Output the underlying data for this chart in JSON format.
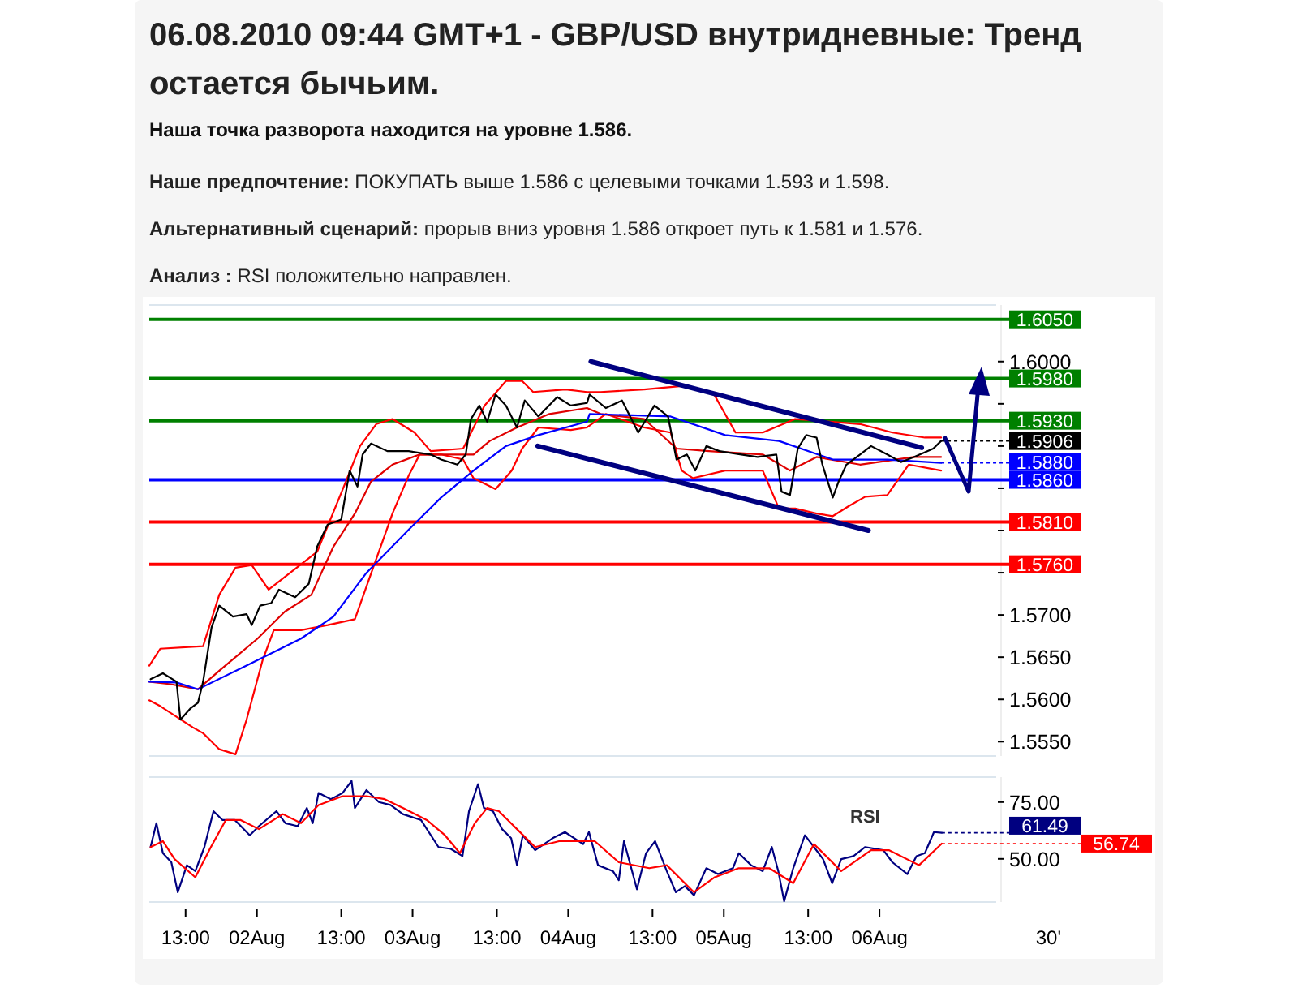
{
  "chart_data": [
    {
      "type": "line",
      "title": "06.08.2010 09:44 GMT+1 - GBP/USD внутридневные: Тренд остается бычьим.",
      "subtitle": "Наша точка разворота находится на уровне 1.586.",
      "annotations": [
        "Наше предпочтение: ПОКУПАТЬ выше 1.586 с целевыми точками 1.593 и 1.598.",
        "Альтернативный сценарий: прорыв вниз уровня 1.586 откроет путь к 1.581 и 1.576.",
        "Анализ : RSI положительно направлен."
      ],
      "xlim": [
        "2010-08-01T07:24",
        "2010-08-06T18:00"
      ],
      "ylim": [
        1.5533,
        1.6067
      ],
      "tick_labels": "y",
      "yticks": [
        {
          "value": 1.555,
          "label": "1.5550"
        },
        {
          "value": 1.56,
          "label": "1.5600"
        },
        {
          "value": 1.565,
          "label": "1.5650"
        },
        {
          "value": 1.57,
          "label": "1.5700"
        },
        {
          "value": 1.575,
          "label": null
        },
        {
          "value": 1.58,
          "label": null
        },
        {
          "value": 1.585,
          "label": null
        },
        {
          "value": 1.59,
          "label": null
        },
        {
          "value": 1.595,
          "label": null
        },
        {
          "value": 1.6,
          "label": "1.6000"
        }
      ],
      "ref_lines": [
        {
          "axis": "y",
          "value": 1.605,
          "label": "1.6050",
          "color": "#008000"
        },
        {
          "axis": "y",
          "value": 1.598,
          "label": "1.5980",
          "color": "#008000"
        },
        {
          "axis": "y",
          "value": 1.593,
          "label": "1.5930",
          "color": "#008000"
        },
        {
          "axis": "y",
          "value": 1.586,
          "label": "1.5860",
          "color": "#0000ff"
        },
        {
          "axis": "y",
          "value": 1.581,
          "label": "1.5810",
          "color": "#ff0000"
        },
        {
          "axis": "y",
          "value": 1.576,
          "label": "1.5760",
          "color": "#ff0000"
        }
      ],
      "series": [
        {
          "color": "#ff0000",
          "x": [
            "2010-08-01T07:24",
            "2010-08-01T09:06",
            "2010-08-01T15:42",
            "2010-08-01T18:12",
            "2010-08-01T20:42",
            "2010-08-01T23:12",
            "2010-08-02T01:48",
            "2010-08-02T09:18",
            "2010-08-02T13:24",
            "2010-08-02T15:54",
            "2010-08-02T18:24",
            "2010-08-02T20:54",
            "2010-08-03T00:18",
            "2010-08-03T02:48",
            "2010-08-03T07:48",
            "2010-08-03T11:06",
            "2010-08-03T14:24",
            "2010-08-03T16:54",
            "2010-08-03T18:36",
            "2010-08-03T23:36",
            "2010-08-04T02:54",
            "2010-08-04T05:00",
            "2010-08-04T11:42",
            "2010-08-04T17:30",
            "2010-08-04T22:30",
            "2010-08-05T01:48",
            "2010-08-05T06:00",
            "2010-08-05T11:00",
            "2010-08-05T16:00",
            "2010-08-05T21:00",
            "2010-08-06T02:00",
            "2010-08-06T07:00",
            "2010-08-06T09:30"
          ],
          "values": [
            1.564,
            1.566,
            1.5663,
            1.5724,
            1.5756,
            1.5759,
            1.573,
            1.5775,
            1.5852,
            1.59,
            1.5926,
            1.5932,
            1.5916,
            1.5894,
            1.5897,
            1.5948,
            1.5977,
            1.5977,
            1.5964,
            1.5967,
            1.5964,
            1.5964,
            1.5967,
            1.5971,
            1.5961,
            1.5916,
            1.5916,
            1.5932,
            1.5929,
            1.5926,
            1.5916,
            1.591,
            1.591
          ]
        },
        {
          "color": "#ff0000",
          "x": [
            "2010-08-01T07:24",
            "2010-08-01T09:06",
            "2010-08-01T14:06",
            "2010-08-01T15:42",
            "2010-08-01T18:12",
            "2010-08-01T20:42",
            "2010-08-01T22:24",
            "2010-08-02T00:54",
            "2010-08-02T02:36",
            "2010-08-02T06:48",
            "2010-08-02T10:54",
            "2010-08-02T15:06",
            "2010-08-02T17:36",
            "2010-08-02T20:54",
            "2010-08-02T23:24",
            "2010-08-03T01:06",
            "2010-08-03T04:24",
            "2010-08-03T07:48",
            "2010-08-03T09:24",
            "2010-08-03T12:48",
            "2010-08-03T15:18",
            "2010-08-03T16:54",
            "2010-08-03T19:24",
            "2010-08-04T00:24",
            "2010-08-04T02:54",
            "2010-08-04T05:48",
            "2010-08-04T11:42",
            "2010-08-04T15:48",
            "2010-08-04T17:30",
            "2010-08-04T19:12",
            "2010-08-05T00:12",
            "2010-08-05T06:00",
            "2010-08-05T08:30",
            "2010-08-05T11:00",
            "2010-08-05T14:18",
            "2010-08-05T16:48",
            "2010-08-05T19:18",
            "2010-08-05T21:48",
            "2010-08-06T01:12",
            "2010-08-06T04:30",
            "2010-08-06T09:30"
          ],
          "values": [
            1.5599,
            1.5592,
            1.5567,
            1.556,
            1.5541,
            1.5535,
            1.5576,
            1.5647,
            1.5682,
            1.5682,
            1.5688,
            1.5695,
            1.5749,
            1.582,
            1.5865,
            1.589,
            1.589,
            1.5884,
            1.5862,
            1.5849,
            1.5871,
            1.5897,
            1.5922,
            1.5919,
            1.5922,
            1.5938,
            1.5922,
            1.5916,
            1.5871,
            1.5862,
            1.5871,
            1.5871,
            1.5826,
            1.5826,
            1.582,
            1.5817,
            1.5829,
            1.584,
            1.5842,
            1.5878,
            1.5871
          ]
        },
        {
          "color": "#e00000",
          "x": [
            "2010-08-01T07:24",
            "2010-08-01T10:42",
            "2010-08-01T14:54",
            "2010-08-01T18:12",
            "2010-08-02T00:06",
            "2010-08-02T04:18",
            "2010-08-02T08:24",
            "2010-08-02T11:48",
            "2010-08-02T15:06",
            "2010-08-02T17:36",
            "2010-08-02T20:54",
            "2010-08-03T01:06",
            "2010-08-03T06:06",
            "2010-08-03T09:24",
            "2010-08-03T11:54",
            "2010-08-03T16:06",
            "2010-08-03T21:06",
            "2010-08-04T02:54",
            "2010-08-04T05:00",
            "2010-08-04T11:42",
            "2010-08-04T16:42",
            "2010-08-04T21:42",
            "2010-08-05T06:00",
            "2010-08-05T10:12",
            "2010-08-05T14:18",
            "2010-08-05T21:00",
            "2010-08-06T05:18",
            "2010-08-06T09:30"
          ],
          "values": [
            1.5621,
            1.5618,
            1.5612,
            1.5634,
            1.5672,
            1.5704,
            1.5724,
            1.5781,
            1.582,
            1.5858,
            1.5878,
            1.589,
            1.589,
            1.589,
            1.5906,
            1.5922,
            1.5938,
            1.5945,
            1.5938,
            1.5932,
            1.5897,
            1.5894,
            1.589,
            1.5871,
            1.5887,
            1.5878,
            1.5887,
            1.5887
          ]
        },
        {
          "color": "#0000ff",
          "x": [
            "2010-08-01T07:24",
            "2010-08-01T11:36",
            "2010-08-01T14:54",
            "2010-08-01T22:24",
            "2010-08-02T06:48",
            "2010-08-02T11:48",
            "2010-08-02T16:48",
            "2010-08-02T23:24",
            "2010-08-03T04:24",
            "2010-08-03T09:24",
            "2010-08-03T14:24",
            "2010-08-03T19:24",
            "2010-08-04T02:54",
            "2010-08-04T03:18",
            "2010-08-04T15:48",
            "2010-08-05T00:12",
            "2010-08-05T08:30",
            "2010-08-05T16:48",
            "2010-08-06T01:12",
            "2010-08-06T09:30"
          ],
          "values": [
            1.5621,
            1.562,
            1.5612,
            1.564,
            1.5672,
            1.5698,
            1.5749,
            1.5801,
            1.5839,
            1.5871,
            1.59,
            1.5913,
            1.5929,
            1.5938,
            1.5935,
            1.5913,
            1.5906,
            1.5884,
            1.5884,
            1.588
          ],
          "value_labels": [
            null,
            null,
            null,
            null,
            null,
            null,
            null,
            null,
            null,
            null,
            null,
            null,
            null,
            null,
            null,
            null,
            null,
            null,
            null,
            "1.5880"
          ]
        },
        {
          "color": "#000000",
          "x": [
            "2010-08-01T07:36",
            "2010-08-01T09:30",
            "2010-08-01T11:36",
            "2010-08-01T12:12",
            "2010-08-01T13:42",
            "2010-08-01T14:54",
            "2010-08-01T15:42",
            "2010-08-01T17:00",
            "2010-08-01T18:12",
            "2010-08-01T20:18",
            "2010-08-01T22:24",
            "2010-08-01T23:12",
            "2010-08-02T00:30",
            "2010-08-02T02:12",
            "2010-08-02T03:24",
            "2010-08-02T05:54",
            "2010-08-02T08:00",
            "2010-08-02T09:18",
            "2010-08-02T10:54",
            "2010-08-02T13:00",
            "2010-08-02T14:18",
            "2010-08-02T15:30",
            "2010-08-02T16:18",
            "2010-08-02T17:36",
            "2010-08-02T20:06",
            "2010-08-02T23:24",
            "2010-08-03T02:48",
            "2010-08-03T04:24",
            "2010-08-03T06:54",
            "2010-08-03T08:12",
            "2010-08-03T09:00",
            "2010-08-03T10:18",
            "2010-08-03T11:30",
            "2010-08-03T12:48",
            "2010-08-03T14:24",
            "2010-08-03T16:06",
            "2010-08-03T17:18",
            "2010-08-03T19:24",
            "2010-08-03T22:18",
            "2010-08-04T00:24",
            "2010-08-04T02:54",
            "2010-08-04T03:18",
            "2010-08-04T05:48",
            "2010-08-04T08:18",
            "2010-08-04T10:48",
            "2010-08-04T13:18",
            "2010-08-04T15:24",
            "2010-08-04T16:42",
            "2010-08-04T18:18",
            "2010-08-04T19:36",
            "2010-08-04T21:18",
            "2010-08-04T23:18",
            "2010-08-05T02:42",
            "2010-08-05T05:12",
            "2010-08-05T08:06",
            "2010-08-05T08:54",
            "2010-08-05T10:12",
            "2010-08-05T11:24",
            "2010-08-05T12:42",
            "2010-08-05T14:18",
            "2010-08-05T15:12",
            "2010-08-05T16:48",
            "2010-08-05T17:42",
            "2010-08-05T18:54",
            "2010-08-05T21:00",
            "2010-08-05T22:42",
            "2010-08-06T01:12",
            "2010-08-06T03:18",
            "2010-08-06T05:18",
            "2010-08-06T08:18",
            "2010-08-06T09:30"
          ],
          "values": [
            1.5624,
            1.5631,
            1.5621,
            1.5576,
            1.5589,
            1.5596,
            1.5621,
            1.5685,
            1.5711,
            1.5698,
            1.5701,
            1.5688,
            1.5711,
            1.5714,
            1.573,
            1.5721,
            1.5737,
            1.5781,
            1.5807,
            1.5813,
            1.5871,
            1.5852,
            1.589,
            1.5903,
            1.5894,
            1.5894,
            1.589,
            1.5884,
            1.5878,
            1.589,
            1.5932,
            1.5948,
            1.5929,
            1.5961,
            1.5948,
            1.5922,
            1.5954,
            1.5935,
            1.5958,
            1.5948,
            1.5951,
            1.5961,
            1.5945,
            1.5954,
            1.5916,
            1.5948,
            1.5935,
            1.5884,
            1.589,
            1.5871,
            1.59,
            1.5894,
            1.589,
            1.5887,
            1.589,
            1.5846,
            1.5842,
            1.5897,
            1.5913,
            1.591,
            1.5878,
            1.5839,
            1.5858,
            1.5878,
            1.589,
            1.59,
            1.589,
            1.5881,
            1.5887,
            1.5897,
            1.5906
          ],
          "value_labels": [
            null,
            null,
            null,
            null,
            null,
            null,
            null,
            null,
            null,
            null,
            null,
            null,
            null,
            null,
            null,
            null,
            null,
            null,
            null,
            null,
            null,
            null,
            null,
            null,
            null,
            null,
            null,
            null,
            null,
            null,
            null,
            null,
            null,
            null,
            null,
            null,
            null,
            null,
            null,
            null,
            null,
            null,
            null,
            null,
            null,
            null,
            null,
            null,
            null,
            null,
            null,
            null,
            null,
            null,
            null,
            null,
            null,
            null,
            null,
            null,
            null,
            null,
            null,
            null,
            null,
            null,
            null,
            null,
            null,
            null,
            "1.5906"
          ]
        },
        {
          "color": "#000080",
          "x": [
            "2010-08-04T03:30",
            "2010-08-06T06:30"
          ],
          "values": [
            1.6,
            1.5898
          ]
        },
        {
          "color": "#000080",
          "x": [
            "2010-08-03T19:18",
            "2010-08-05T22:18"
          ],
          "values": [
            1.59,
            1.58
          ]
        }
      ]
    },
    {
      "type": "line",
      "xlim": [
        "2010-08-01T07:24",
        "2010-08-06T18:00"
      ],
      "ylim": [
        31,
        86
      ],
      "xticks": [
        {
          "value": "2010-08-01T13:00",
          "label": "13:00"
        },
        {
          "value": "2010-08-02T00:00",
          "label": "02Aug"
        },
        {
          "value": "2010-08-02T13:00",
          "label": "13:00"
        },
        {
          "value": "2010-08-03T00:00",
          "label": "03Aug"
        },
        {
          "value": "2010-08-03T13:00",
          "label": "13:00"
        },
        {
          "value": "2010-08-04T00:00",
          "label": "04Aug"
        },
        {
          "value": "2010-08-04T13:00",
          "label": "13:00"
        },
        {
          "value": "2010-08-05T00:00",
          "label": "05Aug"
        },
        {
          "value": "2010-08-05T13:00",
          "label": "13:00"
        },
        {
          "value": "2010-08-06T00:00",
          "label": "06Aug"
        }
      ],
      "yticks": [
        {
          "value": 50,
          "label": "50.00"
        },
        {
          "value": 75,
          "label": "75.00"
        }
      ],
      "annotations": [
        "30'"
      ],
      "series": [
        {
          "name": "RSI",
          "color": "#000080",
          "x": [
            "2010-08-01T07:36",
            "2010-08-01T08:30",
            "2010-08-01T09:30",
            "2010-08-01T10:48",
            "2010-08-01T11:48",
            "2010-08-01T13:12",
            "2010-08-01T14:30",
            "2010-08-01T15:54",
            "2010-08-01T17:18",
            "2010-08-01T18:42",
            "2010-08-01T20:36",
            "2010-08-01T22:54",
            "2010-08-02T00:18",
            "2010-08-02T03:00",
            "2010-08-02T04:24",
            "2010-08-02T06:18",
            "2010-08-02T07:42",
            "2010-08-02T08:36",
            "2010-08-02T09:30",
            "2010-08-02T11:24",
            "2010-08-02T13:12",
            "2010-08-02T14:36",
            "2010-08-02T15:06",
            "2010-08-02T16:54",
            "2010-08-02T18:48",
            "2010-08-02T20:36",
            "2010-08-02T22:30",
            "2010-08-03T01:18",
            "2010-08-03T04:00",
            "2010-08-03T05:54",
            "2010-08-03T07:42",
            "2010-08-03T08:42",
            "2010-08-03T10:06",
            "2010-08-03T11:00",
            "2010-08-03T12:24",
            "2010-08-03T13:48",
            "2010-08-03T15:12",
            "2010-08-03T16:06",
            "2010-08-03T17:00",
            "2010-08-03T18:54",
            "2010-08-03T21:36",
            "2010-08-03T23:30",
            "2010-08-04T02:18",
            "2010-08-04T03:12",
            "2010-08-04T04:36",
            "2010-08-04T06:54",
            "2010-08-04T07:48",
            "2010-08-04T08:36",
            "2010-08-04T10:36",
            "2010-08-04T12:00",
            "2010-08-04T13:24",
            "2010-08-04T15:12",
            "2010-08-04T16:36",
            "2010-08-04T18:00",
            "2010-08-04T19:24",
            "2010-08-04T21:18",
            "2010-08-04T23:06",
            "2010-08-05T01:24",
            "2010-08-05T02:18",
            "2010-08-05T04:12",
            "2010-08-05T06:00",
            "2010-08-05T07:24",
            "2010-08-05T08:24",
            "2010-08-05T09:18",
            "2010-08-05T10:42",
            "2010-08-05T12:30",
            "2010-08-05T13:54",
            "2010-08-05T15:18",
            "2010-08-05T16:42",
            "2010-08-05T18:06",
            "2010-08-05T20:00",
            "2010-08-05T21:48",
            "2010-08-06T00:36",
            "2010-08-06T02:00",
            "2010-08-06T04:18",
            "2010-08-06T05:42",
            "2010-08-06T07:00",
            "2010-08-06T08:24",
            "2010-08-06T09:36"
          ],
          "values": [
            55.2,
            65.7,
            52.5,
            48.5,
            35.3,
            47.2,
            44.6,
            55.2,
            71,
            67.1,
            67.1,
            60.4,
            64.4,
            71,
            65.7,
            64.4,
            72.4,
            65.7,
            79,
            76.3,
            79,
            84.3,
            72.4,
            80.3,
            75,
            73.7,
            69.7,
            67.1,
            55.2,
            54.4,
            51.2,
            71,
            82.9,
            72.4,
            71,
            63.1,
            59.1,
            47.2,
            60.4,
            53.8,
            59.1,
            61.8,
            56.5,
            61.8,
            47.2,
            44.6,
            40.6,
            57.8,
            36.6,
            52.5,
            57.8,
            44.6,
            35.3,
            38,
            34,
            45.9,
            43.3,
            45.9,
            52.5,
            47.2,
            44.6,
            55.2,
            44.6,
            31.3,
            45.9,
            60.4,
            55.2,
            49.9,
            39.3,
            49.9,
            51.2,
            55.2,
            53.8,
            48.5,
            43.3,
            51.2,
            52.5,
            61.8,
            61.49
          ],
          "value_labels": [
            null,
            null,
            null,
            null,
            null,
            null,
            null,
            null,
            null,
            null,
            null,
            null,
            null,
            null,
            null,
            null,
            null,
            null,
            null,
            null,
            null,
            null,
            null,
            null,
            null,
            null,
            null,
            null,
            null,
            null,
            null,
            null,
            null,
            null,
            null,
            null,
            null,
            null,
            null,
            null,
            null,
            null,
            null,
            null,
            null,
            null,
            null,
            null,
            null,
            null,
            null,
            null,
            null,
            null,
            null,
            null,
            null,
            null,
            null,
            null,
            null,
            null,
            null,
            null,
            null,
            null,
            null,
            null,
            null,
            null,
            null,
            null,
            null,
            null,
            null,
            null,
            null,
            null,
            "61.49"
          ]
        },
        {
          "color": "#ff0000",
          "x": [
            "2010-08-01T07:36",
            "2010-08-01T09:30",
            "2010-08-01T11:18",
            "2010-08-01T14:30",
            "2010-08-01T16:54",
            "2010-08-01T19:12",
            "2010-08-01T21:30",
            "2010-08-02T00:18",
            "2010-08-02T04:00",
            "2010-08-02T06:48",
            "2010-08-02T09:30",
            "2010-08-02T13:12",
            "2010-08-02T16:54",
            "2010-08-02T19:42",
            "2010-08-02T22:30",
            "2010-08-03T02:12",
            "2010-08-03T05:00",
            "2010-08-03T07:18",
            "2010-08-03T09:36",
            "2010-08-03T11:30",
            "2010-08-03T13:18",
            "2010-08-03T16:06",
            "2010-08-03T18:54",
            "2010-08-03T22:36",
            "2010-08-04T04:06",
            "2010-08-04T07:48",
            "2010-08-04T12:30",
            "2010-08-04T15:12",
            "2010-08-04T19:24",
            "2010-08-04T22:36",
            "2010-08-05T02:18",
            "2010-08-05T07:00",
            "2010-08-05T10:42",
            "2010-08-05T13:54",
            "2010-08-05T18:06",
            "2010-08-05T22:42",
            "2010-08-06T01:30",
            "2010-08-06T06:06",
            "2010-08-06T09:36"
          ],
          "values": [
            55.2,
            57.8,
            49.9,
            41.9,
            55.2,
            67.1,
            67.1,
            63.1,
            69.7,
            65.7,
            73.7,
            77.6,
            77.6,
            76.3,
            72.4,
            67.1,
            60.4,
            52.5,
            65.7,
            72.4,
            71,
            63.1,
            55.2,
            57.8,
            57.8,
            48.5,
            45.9,
            47.2,
            35.3,
            41.9,
            45.9,
            45.9,
            39.3,
            56.5,
            44.6,
            53.8,
            53.8,
            47.2,
            56.74
          ],
          "value_labels": [
            null,
            null,
            null,
            null,
            null,
            null,
            null,
            null,
            null,
            null,
            null,
            null,
            null,
            null,
            null,
            null,
            null,
            null,
            null,
            null,
            null,
            null,
            null,
            null,
            null,
            null,
            null,
            null,
            null,
            null,
            null,
            null,
            null,
            null,
            null,
            null,
            null,
            null,
            "56.74"
          ]
        }
      ]
    }
  ]
}
